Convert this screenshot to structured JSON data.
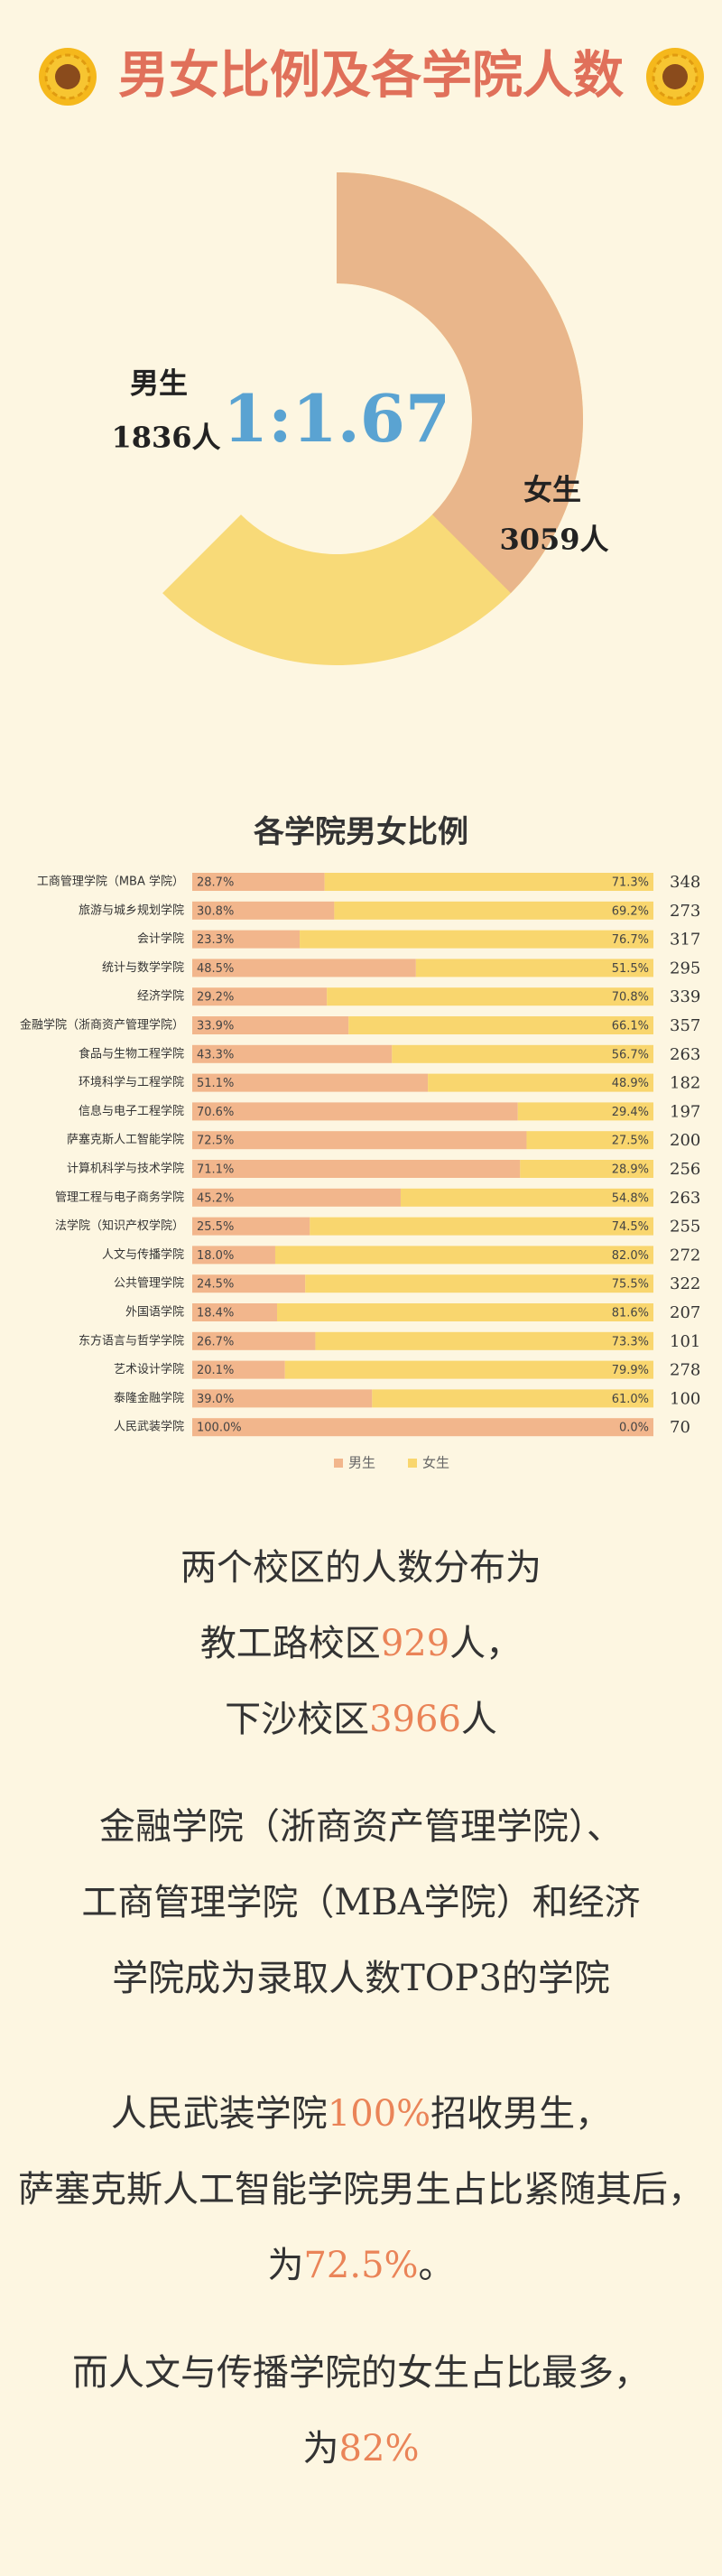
{
  "title": "男女比例及各学院人数",
  "chart_data": [
    {
      "type": "donut",
      "center_label": "1:1.67",
      "categories": [
        "男生",
        "女生"
      ],
      "values": [
        1836,
        3059
      ],
      "value_labels": [
        "1836人",
        "3059人"
      ],
      "colors": [
        "#e9b68b",
        "#f8da78"
      ]
    },
    {
      "type": "stacked_bar_100",
      "title": "各学院男女比例",
      "categories": [
        "工商管理学院（MBA 学院）",
        "旅游与城乡规划学院",
        "会计学院",
        "统计与数学学院",
        "经济学院",
        "金融学院（浙商资产管理学院）",
        "食品与生物工程学院",
        "环境科学与工程学院",
        "信息与电子工程学院",
        "萨塞克斯人工智能学院",
        "计算机科学与技术学院",
        "管理工程与电子商务学院",
        "法学院（知识产权学院）",
        "人文与传播学院",
        "公共管理学院",
        "外国语学院",
        "东方语言与哲学学院",
        "艺术设计学院",
        "泰隆金融学院",
        "人民武装学院"
      ],
      "xlim": [
        0,
        100
      ],
      "legend": "bottom",
      "series": [
        {
          "name": "男生",
          "color": "#f2b68c",
          "values": [
            28.7,
            30.8,
            23.3,
            48.5,
            29.2,
            33.9,
            43.3,
            51.1,
            70.6,
            72.5,
            71.1,
            45.2,
            25.5,
            18.0,
            24.5,
            18.4,
            26.7,
            20.1,
            39.0,
            100.0
          ],
          "value_labels": [
            "28.7%",
            "30.8%",
            "23.3%",
            "48.5%",
            "29.2%",
            "33.9%",
            "43.3%",
            "51.1%",
            "70.6%",
            "72.5%",
            "71.1%",
            "45.2%",
            "25.5%",
            "18.0%",
            "24.5%",
            "18.4%",
            "26.7%",
            "20.1%",
            "39.0%",
            "100.0%"
          ]
        },
        {
          "name": "女生",
          "color": "#f9d66e",
          "values": [
            71.3,
            69.2,
            76.7,
            51.5,
            70.8,
            66.1,
            56.7,
            48.9,
            29.4,
            27.5,
            28.9,
            54.8,
            74.5,
            82.0,
            75.5,
            81.6,
            73.3,
            79.9,
            61.0,
            0.0
          ],
          "value_labels": [
            "71.3%",
            "69.2%",
            "76.7%",
            "51.5%",
            "70.8%",
            "66.1%",
            "56.7%",
            "48.9%",
            "29.4%",
            "27.5%",
            "28.9%",
            "54.8%",
            "74.5%",
            "82.0%",
            "75.5%",
            "81.6%",
            "73.3%",
            "79.9%",
            "61.0%",
            "0.0%"
          ]
        }
      ],
      "totals": [
        348,
        273,
        317,
        295,
        339,
        357,
        263,
        182,
        197,
        200,
        256,
        263,
        255,
        272,
        322,
        207,
        101,
        278,
        100,
        70
      ]
    }
  ],
  "paragraphs": [
    [
      [
        {
          "text": "两个校区的人数分布为"
        }
      ],
      [
        {
          "text": "教工路校区"
        },
        {
          "text": "929",
          "highlight": true
        },
        {
          "text": "人，"
        }
      ],
      [
        {
          "text": "下沙校区"
        },
        {
          "text": "3966",
          "highlight": true
        },
        {
          "text": "人"
        }
      ]
    ],
    [
      [
        {
          "text": "金融学院（浙商资产管理学院）、"
        }
      ],
      [
        {
          "text": "工商管理学院（MBA学院）和经济"
        }
      ],
      [
        {
          "text": "学院成为录取人数TOP3的学院"
        }
      ]
    ],
    [
      [
        {
          "text": "人民武装学院"
        },
        {
          "text": "100%",
          "highlight": true
        },
        {
          "text": "招收男生，"
        }
      ],
      [
        {
          "text": "萨塞克斯人工智能学院男生占比紧随其后，"
        }
      ],
      [
        {
          "text": "为"
        },
        {
          "text": "72.5%",
          "highlight": true
        },
        {
          "text": "。"
        }
      ]
    ],
    [
      [
        {
          "text": "而人文与传播学院的女生占比最多，"
        }
      ],
      [
        {
          "text": "为"
        },
        {
          "text": "82%",
          "highlight": true
        }
      ]
    ]
  ]
}
